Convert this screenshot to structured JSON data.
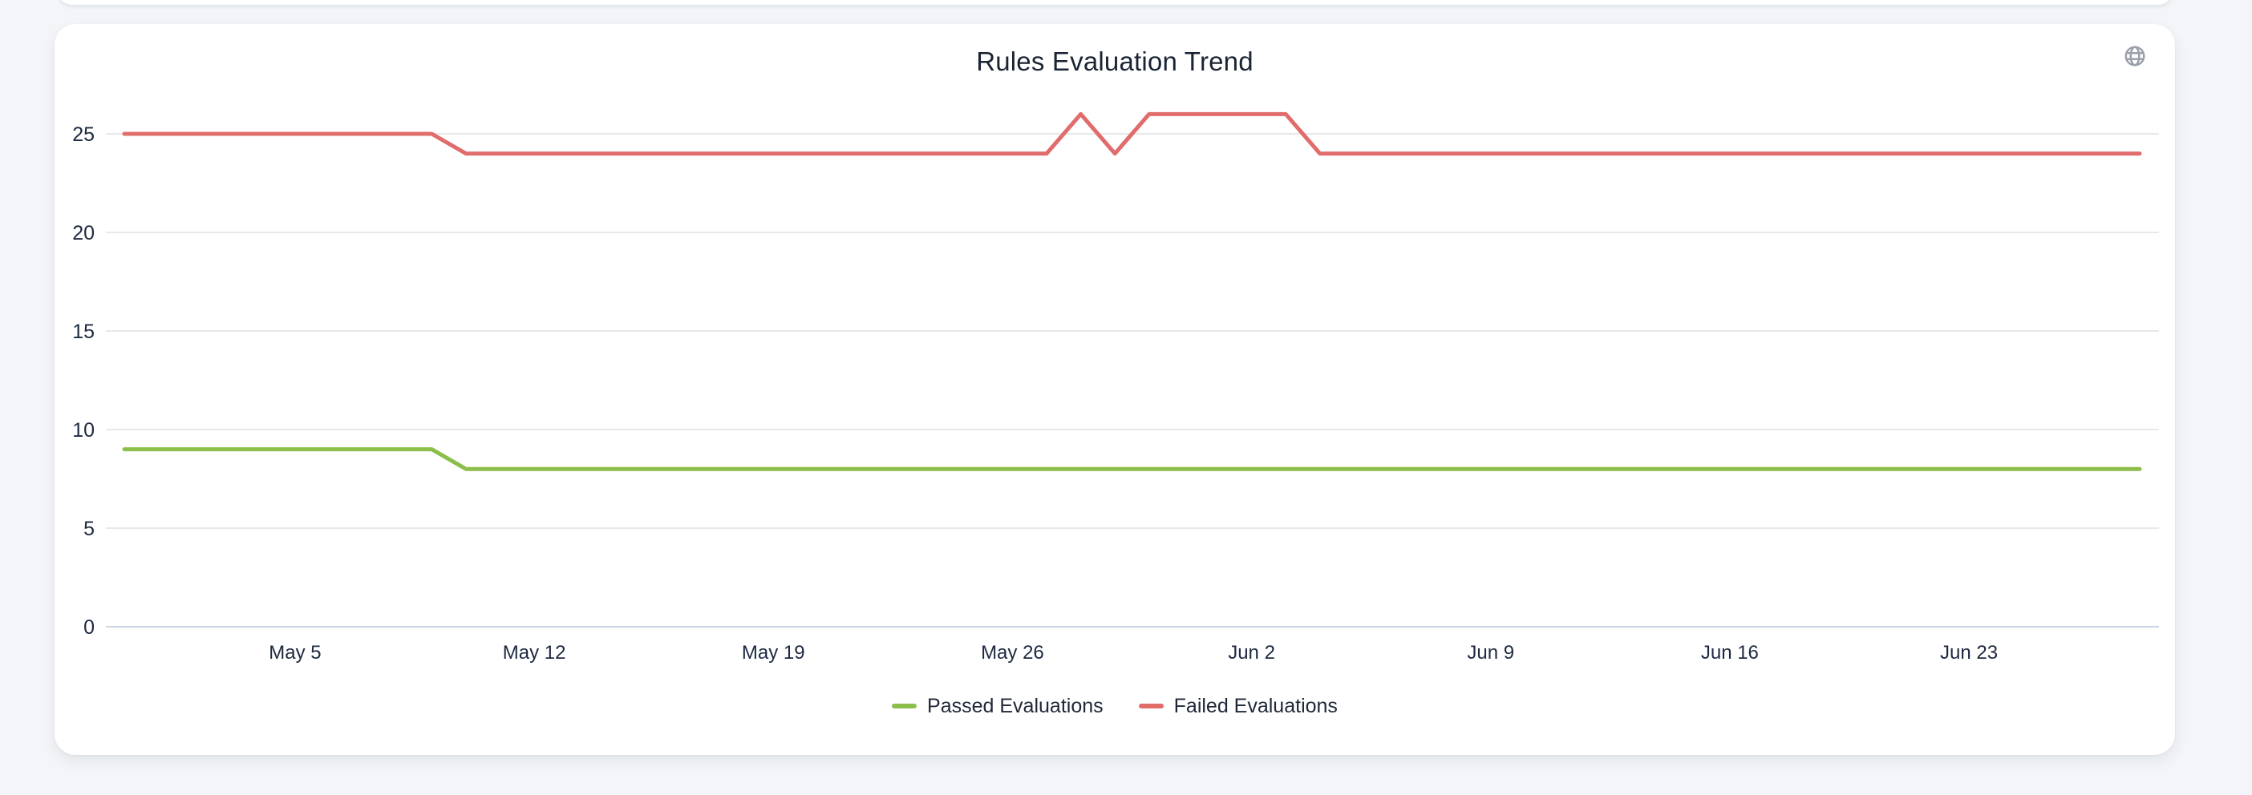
{
  "page": {
    "background_color": "#f3f5f8"
  },
  "card": {
    "globe_color": "#9aa1ac"
  },
  "chart_data": {
    "type": "line",
    "title": "Rules Evaluation Trend",
    "xlabel": "",
    "ylabel": "",
    "grid": true,
    "legend_position": "bottom",
    "ylim": [
      0,
      27.5
    ],
    "y_ticks": [
      0,
      5,
      10,
      15,
      20,
      25
    ],
    "grid_color": "#e8e8e8",
    "axis_line_color": "#cbd4e1",
    "tick_color": "#1d2940",
    "x_tick_labels": [
      "May 5",
      "May 12",
      "May 19",
      "May 26",
      "Jun 2",
      "Jun 9",
      "Jun 16",
      "Jun 23"
    ],
    "x": [
      "Apr 30",
      "May 1",
      "May 2",
      "May 3",
      "May 4",
      "May 5",
      "May 6",
      "May 7",
      "May 8",
      "May 9",
      "May 10",
      "May 11",
      "May 12",
      "May 13",
      "May 14",
      "May 15",
      "May 16",
      "May 17",
      "May 18",
      "May 19",
      "May 20",
      "May 21",
      "May 22",
      "May 23",
      "May 24",
      "May 25",
      "May 26",
      "May 27",
      "May 28",
      "May 29",
      "May 30",
      "May 31",
      "Jun 1",
      "Jun 2",
      "Jun 3",
      "Jun 4",
      "Jun 5",
      "Jun 6",
      "Jun 7",
      "Jun 8",
      "Jun 9",
      "Jun 10",
      "Jun 11",
      "Jun 12",
      "Jun 13",
      "Jun 14",
      "Jun 15",
      "Jun 16",
      "Jun 17",
      "Jun 18",
      "Jun 19",
      "Jun 20",
      "Jun 21",
      "Jun 22",
      "Jun 23",
      "Jun 24",
      "Jun 25",
      "Jun 26",
      "Jun 27",
      "Jun 28"
    ],
    "series": [
      {
        "name": "Passed Evaluations",
        "color": "#8cbe4b",
        "values": [
          9,
          9,
          9,
          9,
          9,
          9,
          9,
          9,
          9,
          9,
          8,
          8,
          8,
          8,
          8,
          8,
          8,
          8,
          8,
          8,
          8,
          8,
          8,
          8,
          8,
          8,
          8,
          8,
          8,
          8,
          8,
          8,
          8,
          8,
          8,
          8,
          8,
          8,
          8,
          8,
          8,
          8,
          8,
          8,
          8,
          8,
          8,
          8,
          8,
          8,
          8,
          8,
          8,
          8,
          8,
          8,
          8,
          8,
          8,
          8
        ]
      },
      {
        "name": "Failed Evaluations",
        "color": "#e16c6c",
        "values": [
          25,
          25,
          25,
          25,
          25,
          25,
          25,
          25,
          25,
          25,
          24,
          24,
          24,
          24,
          24,
          24,
          24,
          24,
          24,
          24,
          24,
          24,
          24,
          24,
          24,
          24,
          24,
          24,
          26,
          24,
          26,
          26,
          26,
          26,
          26,
          24,
          24,
          24,
          24,
          24,
          24,
          24,
          24,
          24,
          24,
          24,
          24,
          24,
          24,
          24,
          24,
          24,
          24,
          24,
          24,
          24,
          24,
          24,
          24,
          24
        ]
      }
    ]
  }
}
